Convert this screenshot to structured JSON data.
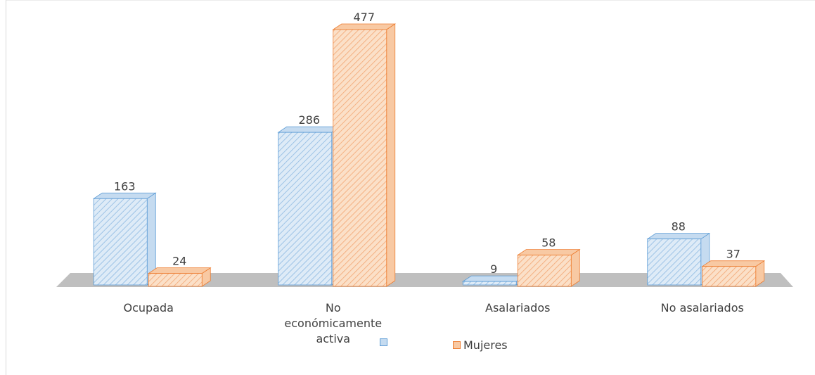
{
  "chart_data": {
    "type": "bar3d",
    "categories": [
      "Ocupada",
      "No económicamente activa",
      "Asalariados",
      "No asalariados"
    ],
    "series": [
      {
        "color": "#5b9bd5",
        "values": [
          163,
          286,
          9,
          88
        ]
      },
      {
        "name": "Mujeres",
        "color": "#ed7d31",
        "values": [
          24,
          477,
          58,
          37
        ]
      }
    ]
  }
}
